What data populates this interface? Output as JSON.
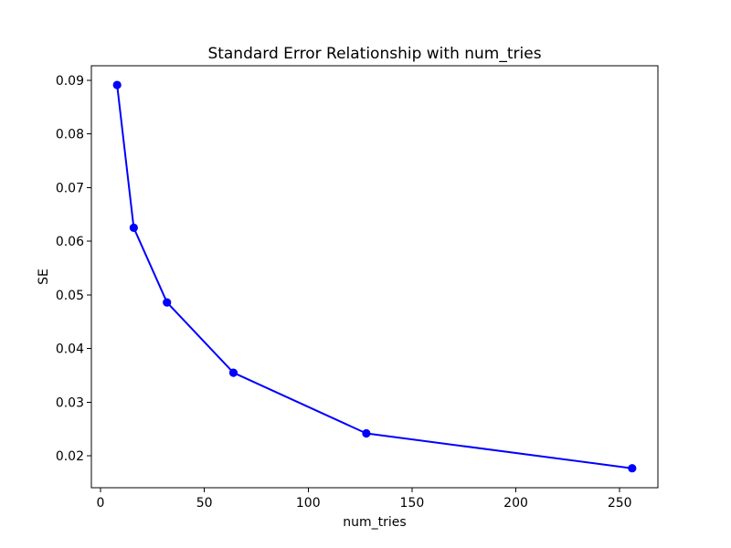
{
  "figure": {
    "background": "#ffffff",
    "axis_color": "#000000",
    "text_color": "#000000"
  },
  "chart_data": {
    "type": "line",
    "title": "Standard Error Relationship with num_tries",
    "xlabel": "num_tries",
    "ylabel": "SE",
    "grid": false,
    "legend": null,
    "xlim": [
      -4.4,
      268.4
    ],
    "ylim": [
      0.014077,
      0.092683
    ],
    "xticks": {
      "values": [
        0,
        50,
        100,
        150,
        200,
        250
      ],
      "labels": [
        "0",
        "50",
        "100",
        "150",
        "200",
        "250"
      ]
    },
    "yticks": {
      "values": [
        0.02,
        0.03,
        0.04,
        0.05,
        0.06,
        0.07,
        0.08,
        0.09
      ],
      "labels": [
        "0.02",
        "0.03",
        "0.04",
        "0.05",
        "0.06",
        "0.07",
        "0.08",
        "0.09"
      ]
    },
    "series": [
      {
        "name": "SE",
        "color": "#0000ff",
        "marker": "circle",
        "x": [
          8,
          16,
          32,
          64,
          128,
          256
        ],
        "y": [
          0.0891,
          0.0625,
          0.0486,
          0.0355,
          0.0242,
          0.0177
        ]
      }
    ]
  }
}
